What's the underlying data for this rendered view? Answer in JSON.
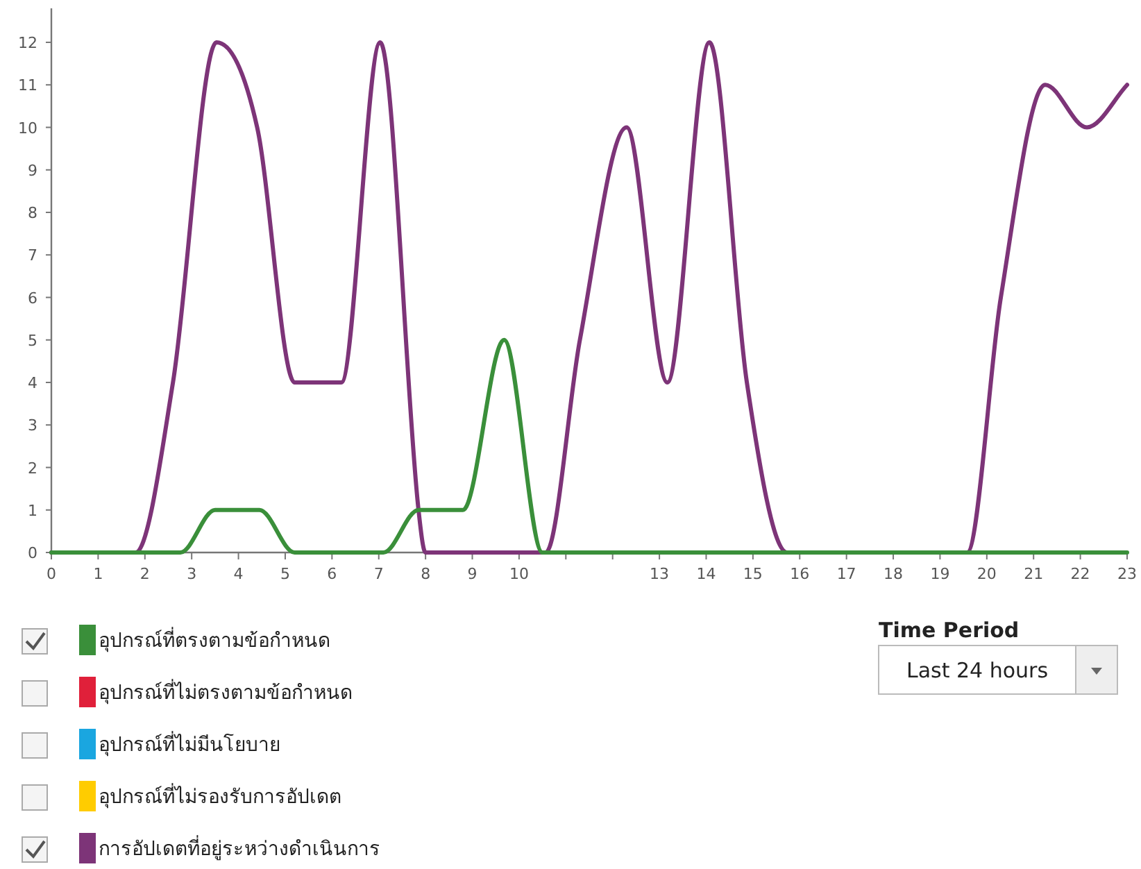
{
  "chart_data": {
    "type": "line",
    "xlim": [
      0,
      23
    ],
    "ylim": [
      0,
      12.8
    ],
    "xticks": [
      0,
      1,
      2,
      3,
      4,
      5,
      6,
      7,
      8,
      9,
      10,
      {
        "value": 11,
        "label": null
      },
      {
        "value": 12,
        "label": null
      },
      13,
      14,
      15,
      16,
      17,
      18,
      19,
      20,
      21,
      22,
      23
    ],
    "yticks": [
      0,
      1,
      2,
      3,
      4,
      5,
      6,
      7,
      8,
      9,
      10,
      11,
      12
    ],
    "grid": false,
    "legend": "bottom left",
    "marker": "none",
    "line_style": "solid",
    "series": [
      {
        "name": "อุปกรณ์ที่ตรงตามข้อกำหนด",
        "color": "#3a8f3a",
        "x": [
          0,
          2.76,
          3.5,
          4.45,
          5.2,
          7.1,
          7.85,
          8.8,
          9.68,
          10.5,
          23
        ],
        "values": [
          0,
          0,
          1,
          1,
          0,
          0,
          1,
          1,
          5,
          0,
          0
        ]
      },
      {
        "name": "อุปกรณ์ที่ไม่ตรงตามข้อกำหนด",
        "color": "#e0203a"
      },
      {
        "name": "อุปกรณ์ที่ไม่มีนโยบาย",
        "color": "#1aa6e0"
      },
      {
        "name": "อุปกรณ์ที่ไม่รองรับการอัปเดต",
        "color": "#ffcc00"
      },
      {
        "name": "การอัปเดตที่อยู่ระหว่างดำเนินการ",
        "color": "#7d3478",
        "x": [
          0,
          1.8,
          2.6,
          3.53,
          4.4,
          5.2,
          6.2,
          7.03,
          7.85,
          8.0,
          10.57,
          11.3,
          12.3,
          13.17,
          14.07,
          14.87,
          15.73,
          19.58,
          20.3,
          21.25,
          22.14,
          23
        ],
        "values": [
          0,
          0,
          4,
          12,
          10,
          4,
          4,
          12,
          1,
          0,
          0,
          5,
          10,
          4,
          12,
          4,
          0,
          0,
          6,
          11,
          10,
          11
        ]
      }
    ],
    "annotations": [
      "Time Period",
      "Last 24 hours"
    ]
  }
}
